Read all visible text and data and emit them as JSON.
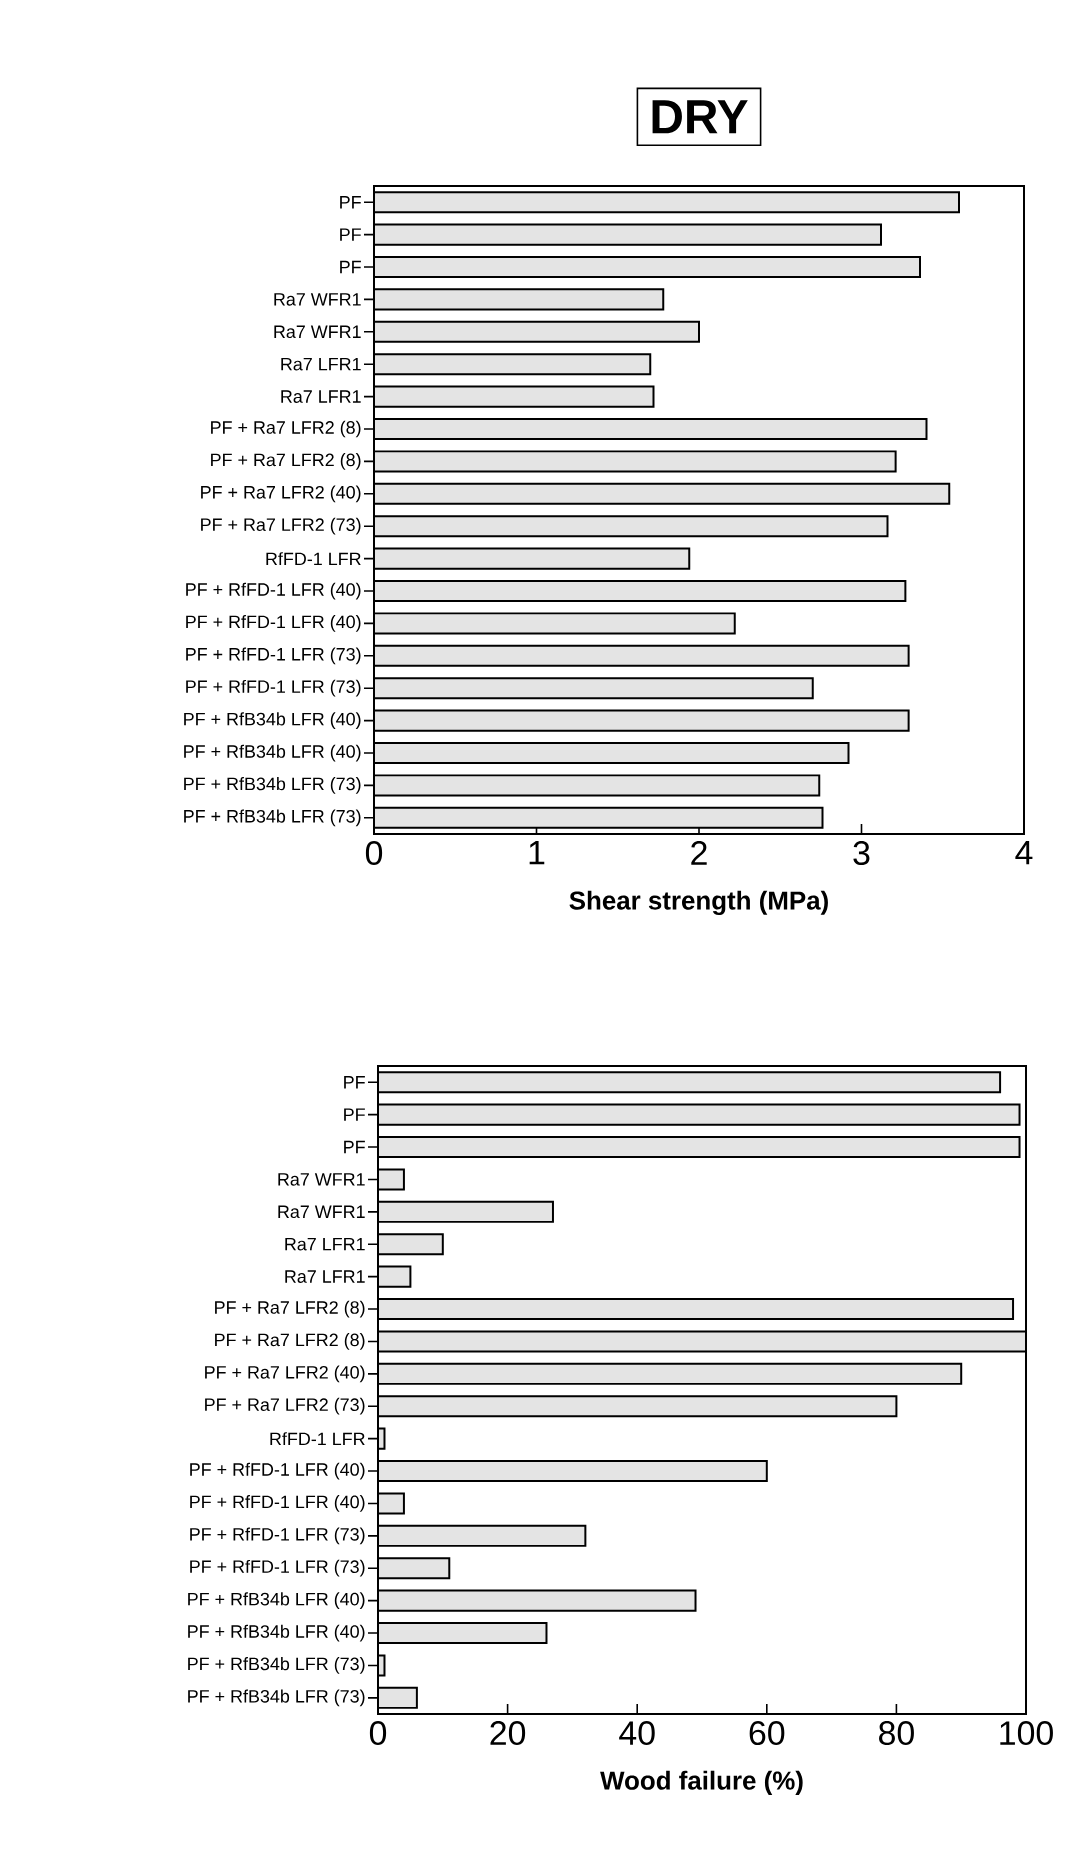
{
  "chart_data": [
    {
      "type": "bar",
      "orientation": "horizontal",
      "title": "DRY",
      "xlabel": "Shear strength (MPa)",
      "categories": [
        "PF",
        "PF",
        "PF",
        "Ra7 WFR1",
        "Ra7 WFR1",
        "Ra7 LFR1",
        "Ra7 LFR1",
        "PF + Ra7 LFR2 (8)",
        "PF + Ra7 LFR2 (8)",
        "PF + Ra7 LFR2 (40)",
        "PF + Ra7 LFR2 (73)",
        "RfFD-1 LFR",
        "PF + RfFD-1 LFR (40)",
        "PF + RfFD-1 LFR (40)",
        "PF + RfFD-1 LFR (73)",
        "PF + RfFD-1 LFR (73)",
        "PF + RfB34b LFR (40)",
        "PF + RfB34b LFR (40)",
        "PF + RfB34b LFR (73)",
        "PF + RfB34b LFR (73)"
      ],
      "values": [
        3.6,
        3.12,
        3.36,
        1.78,
        2.0,
        1.7,
        1.72,
        3.4,
        3.21,
        3.54,
        3.16,
        1.94,
        3.27,
        2.22,
        3.29,
        2.7,
        3.29,
        2.92,
        2.74,
        2.76
      ],
      "color": "#e4e4e4",
      "xlim": [
        0,
        4
      ],
      "xticks": [
        0,
        1,
        2,
        3,
        4
      ]
    },
    {
      "type": "bar",
      "orientation": "horizontal",
      "xlabel": "Wood failure (%)",
      "categories": [
        "PF",
        "PF",
        "PF",
        "Ra7 WFR1",
        "Ra7 WFR1",
        "Ra7 LFR1",
        "Ra7 LFR1",
        "PF + Ra7 LFR2 (8)",
        "PF + Ra7 LFR2 (8)",
        "PF + Ra7 LFR2 (40)",
        "PF + Ra7 LFR2 (73)",
        "RfFD-1 LFR",
        "PF + RfFD-1 LFR (40)",
        "PF + RfFD-1 LFR (40)",
        "PF + RfFD-1 LFR (73)",
        "PF + RfFD-1 LFR (73)",
        "PF + RfB34b LFR (40)",
        "PF + RfB34b LFR (40)",
        "PF + RfB34b LFR (73)",
        "PF + RfB34b LFR (73)"
      ],
      "values": [
        96,
        99,
        99,
        4,
        27,
        10,
        5,
        98,
        100,
        90,
        80,
        1,
        60,
        4,
        32,
        11,
        49,
        26,
        1,
        6
      ],
      "color": "#e4e4e4",
      "xlim": [
        0,
        100
      ],
      "xticks": [
        0,
        20,
        40,
        60,
        80,
        100
      ]
    }
  ]
}
